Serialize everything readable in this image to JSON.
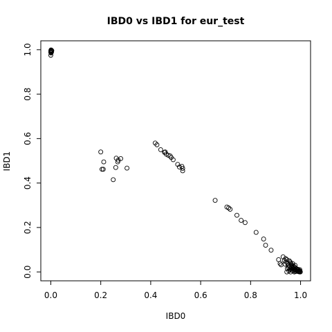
{
  "chart_data": {
    "type": "scatter",
    "title": "IBD0 vs IBD1 for eur_test",
    "xlabel": "IBD0",
    "ylabel": "IBD1",
    "xlim": [
      -0.04,
      1.04
    ],
    "ylim": [
      -0.04,
      1.04
    ],
    "x_ticks": [
      0.0,
      0.2,
      0.4,
      0.6,
      0.8,
      1.0
    ],
    "y_ticks": [
      0.0,
      0.2,
      0.4,
      0.6,
      0.8,
      1.0
    ],
    "x_tick_labels": [
      "0.0",
      "0.2",
      "0.4",
      "0.6",
      "0.8",
      "1.0"
    ],
    "y_tick_labels": [
      "0.0",
      "0.2",
      "0.4",
      "0.6",
      "0.8",
      "1.0"
    ],
    "marker": "open-circle",
    "grid": false,
    "points": [
      [
        0.0,
        0.995
      ],
      [
        0.001,
        0.992
      ],
      [
        0.002,
        0.998
      ],
      [
        0.0,
        0.988
      ],
      [
        0.003,
        0.99
      ],
      [
        0.001,
        0.985
      ],
      [
        0.0,
        0.975
      ],
      [
        0.002,
        0.994
      ],
      [
        0.004,
        0.996
      ],
      [
        0.001,
        0.999
      ],
      [
        0.2,
        0.54
      ],
      [
        0.205,
        0.462
      ],
      [
        0.21,
        0.462
      ],
      [
        0.212,
        0.495
      ],
      [
        0.25,
        0.415
      ],
      [
        0.26,
        0.47
      ],
      [
        0.262,
        0.512
      ],
      [
        0.268,
        0.495
      ],
      [
        0.27,
        0.503
      ],
      [
        0.28,
        0.51
      ],
      [
        0.305,
        0.467
      ],
      [
        0.418,
        0.58
      ],
      [
        0.425,
        0.572
      ],
      [
        0.44,
        0.55
      ],
      [
        0.455,
        0.538
      ],
      [
        0.458,
        0.54
      ],
      [
        0.462,
        0.53
      ],
      [
        0.47,
        0.525
      ],
      [
        0.478,
        0.522
      ],
      [
        0.482,
        0.515
      ],
      [
        0.49,
        0.505
      ],
      [
        0.508,
        0.484
      ],
      [
        0.515,
        0.472
      ],
      [
        0.525,
        0.475
      ],
      [
        0.528,
        0.466
      ],
      [
        0.528,
        0.455
      ],
      [
        0.658,
        0.322
      ],
      [
        0.705,
        0.292
      ],
      [
        0.712,
        0.288
      ],
      [
        0.718,
        0.282
      ],
      [
        0.745,
        0.255
      ],
      [
        0.762,
        0.232
      ],
      [
        0.778,
        0.222
      ],
      [
        0.822,
        0.178
      ],
      [
        0.852,
        0.148
      ],
      [
        0.86,
        0.12
      ],
      [
        0.882,
        0.098
      ],
      [
        0.912,
        0.055
      ],
      [
        0.918,
        0.038
      ],
      [
        0.922,
        0.032
      ],
      [
        0.93,
        0.068
      ],
      [
        0.935,
        0.052
      ],
      [
        0.94,
        0.06
      ],
      [
        0.945,
        0.055
      ],
      [
        0.948,
        0.04
      ],
      [
        0.95,
        0.03
      ],
      [
        0.945,
        0.0
      ],
      [
        0.955,
        0.05
      ],
      [
        0.958,
        0.045
      ],
      [
        0.96,
        0.04
      ],
      [
        0.962,
        0.035
      ],
      [
        0.965,
        0.03
      ],
      [
        0.968,
        0.025
      ],
      [
        0.97,
        0.02
      ],
      [
        0.972,
        0.015
      ],
      [
        0.975,
        0.012
      ],
      [
        0.978,
        0.01
      ],
      [
        0.98,
        0.008
      ],
      [
        0.982,
        0.006
      ],
      [
        0.985,
        0.004
      ],
      [
        0.988,
        0.003
      ],
      [
        0.99,
        0.002
      ],
      [
        0.993,
        0.001
      ],
      [
        0.996,
        0.0
      ],
      [
        0.999,
        0.0
      ],
      [
        0.96,
        0.015
      ],
      [
        0.965,
        0.008
      ],
      [
        0.97,
        0.005
      ],
      [
        0.975,
        0.0
      ],
      [
        0.98,
        0.002
      ],
      [
        0.985,
        0.01
      ],
      [
        0.99,
        0.012
      ],
      [
        0.995,
        0.006
      ],
      [
        0.998,
        0.003
      ],
      [
        0.952,
        0.02
      ],
      [
        0.958,
        0.028
      ],
      [
        0.963,
        0.022
      ],
      [
        0.967,
        0.018
      ],
      [
        0.973,
        0.025
      ],
      [
        0.977,
        0.02
      ],
      [
        0.983,
        0.015
      ],
      [
        0.987,
        0.008
      ],
      [
        0.992,
        0.005
      ],
      [
        0.997,
        0.01
      ],
      [
        0.978,
        0.03
      ],
      [
        0.968,
        0.038
      ],
      [
        0.96,
        0.0
      ],
      [
        0.957,
        0.01
      ],
      [
        0.938,
        0.035
      ],
      [
        0.942,
        0.045
      ],
      [
        0.947,
        0.015
      ],
      [
        0.953,
        0.005
      ]
    ]
  }
}
